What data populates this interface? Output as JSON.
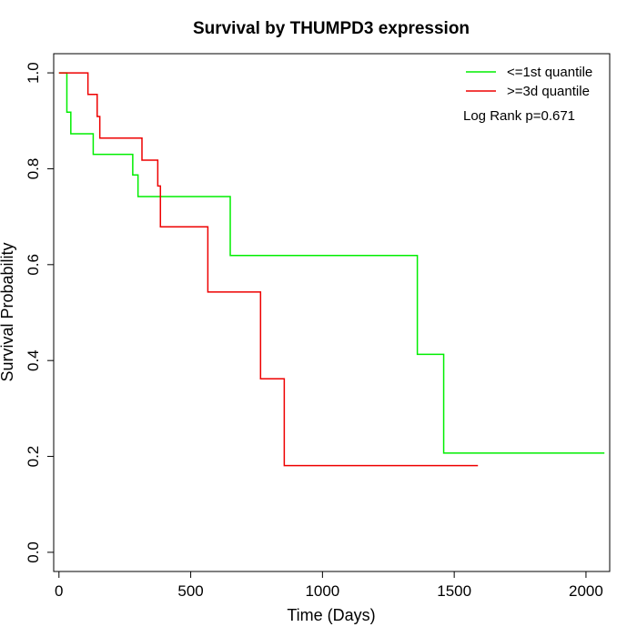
{
  "chart_data": {
    "type": "line",
    "title": "Survival by THUMPD3 expression",
    "xlabel": "Time (Days)",
    "ylabel": "Survival Probability",
    "xlim": [
      -20,
      2090
    ],
    "ylim": [
      -0.04,
      1.04
    ],
    "xticks": [
      0,
      500,
      1000,
      1500,
      2000
    ],
    "yticks": [
      0.0,
      0.2,
      0.4,
      0.6,
      0.8,
      1.0
    ],
    "xtick_labels": [
      "0",
      "500",
      "1000",
      "1500",
      "2000"
    ],
    "ytick_labels": [
      "0.0",
      "0.2",
      "0.4",
      "0.6",
      "0.8",
      "1.0"
    ],
    "grid": false,
    "legend_position": "top-right",
    "annotation": "Log Rank p=0.671",
    "series": [
      {
        "name": "<=1st quantile",
        "color": "#00ee00",
        "step": true,
        "x": [
          0,
          25,
          30,
          45,
          130,
          280,
          300,
          650,
          1360,
          1460,
          2070
        ],
        "y": [
          1.0,
          1.0,
          0.918,
          0.873,
          0.83,
          0.787,
          0.742,
          0.619,
          0.413,
          0.207,
          0.207
        ]
      },
      {
        "name": ">=3d quantile",
        "color": "#ee0000",
        "step": true,
        "x": [
          0,
          110,
          145,
          155,
          315,
          375,
          385,
          565,
          765,
          855,
          1590
        ],
        "y": [
          1.0,
          0.955,
          0.909,
          0.864,
          0.818,
          0.764,
          0.679,
          0.543,
          0.362,
          0.181,
          0.181
        ]
      }
    ]
  }
}
